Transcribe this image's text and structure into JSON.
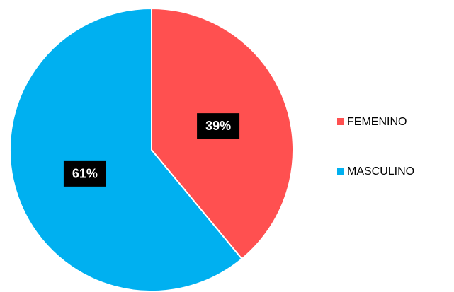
{
  "chart_data": {
    "type": "pie",
    "categories": [
      "FEMENINO",
      "MASCULINO"
    ],
    "values": [
      39,
      61
    ],
    "value_labels": [
      "39%",
      "61%"
    ],
    "colors": [
      "#ff5050",
      "#00b0f0"
    ],
    "legend": "right"
  }
}
